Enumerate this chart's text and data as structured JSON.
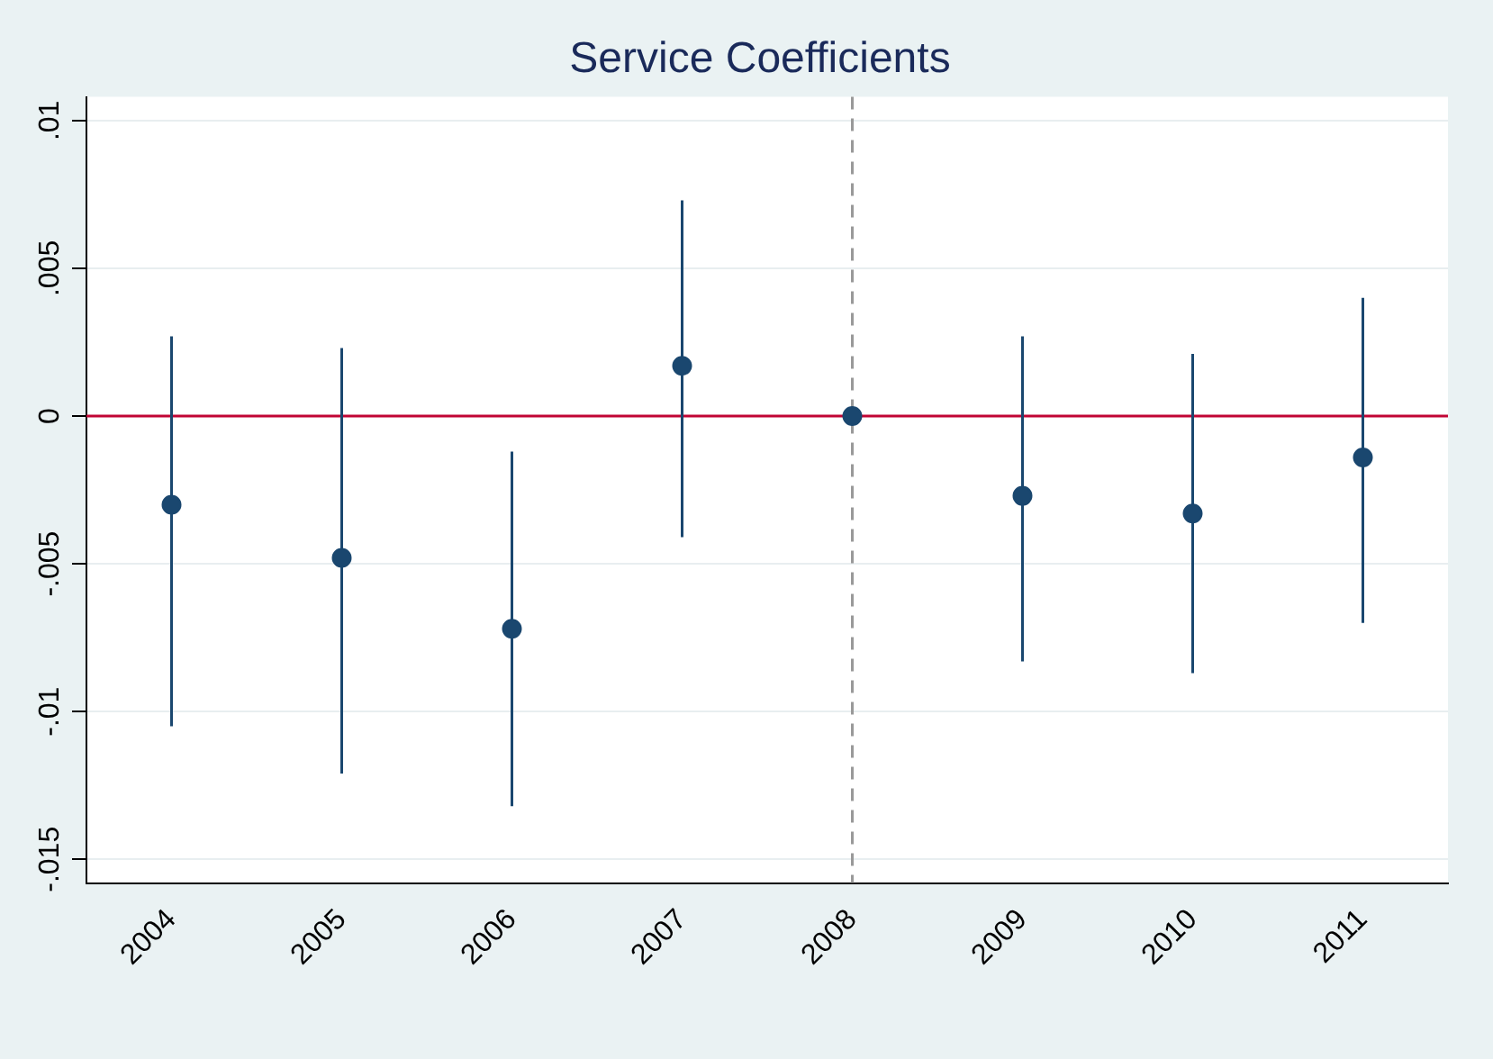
{
  "chart_data": {
    "type": "scatter",
    "title": "Service Coefficients",
    "categories": [
      "2004",
      "2005",
      "2006",
      "2007",
      "2008",
      "2009",
      "2010",
      "2011"
    ],
    "series": [
      {
        "color": "#1a476f",
        "values": [
          -0.003,
          -0.0048,
          -0.0072,
          0.0017,
          0,
          -0.0027,
          -0.0033,
          -0.0014
        ],
        "errors": [
          [
            -0.0105,
            0.0027
          ],
          [
            -0.0121,
            0.0023
          ],
          [
            -0.0132,
            -0.0012
          ],
          [
            -0.0041,
            0.0073
          ],
          null,
          [
            -0.0083,
            0.0027
          ],
          [
            -0.0087,
            0.0021
          ],
          [
            -0.007,
            0.004
          ]
        ]
      }
    ],
    "ylim": [
      -0.0158,
      0.0108
    ],
    "yticks": [
      {
        "value": -0.015,
        "label": "-.015"
      },
      {
        "value": -0.01,
        "label": "-.01"
      },
      {
        "value": -0.005,
        "label": "-.005"
      },
      {
        "value": 0,
        "label": "0"
      },
      {
        "value": 0.005,
        "label": ".005"
      },
      {
        "value": 0.01,
        "label": ".01"
      }
    ],
    "ref_lines": [
      {
        "axis": "x",
        "value": "2008",
        "color": "#999999",
        "line_style": "dashed"
      },
      {
        "axis": "y",
        "value": 0,
        "color": "#c10534",
        "line_style": "solid"
      }
    ],
    "grid": "y",
    "legend": false,
    "marker": "circle"
  }
}
